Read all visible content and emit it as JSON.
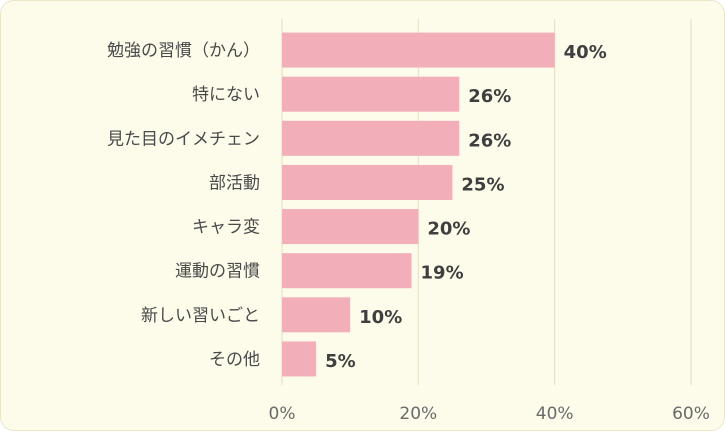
{
  "chart_data": {
    "type": "bar",
    "orientation": "horizontal",
    "categories": [
      "勉強の習慣（かん）",
      "特にない",
      "見た目のイメチェン",
      "部活動",
      "キャラ変",
      "運動の習慣",
      "新しい習いごと",
      "その他"
    ],
    "values": [
      40,
      26,
      26,
      25,
      20,
      19,
      10,
      5
    ],
    "value_labels": [
      "40%",
      "26%",
      "26%",
      "25%",
      "20%",
      "19%",
      "10%",
      "5%"
    ],
    "x_ticks": [
      0,
      20,
      40,
      60
    ],
    "x_tick_labels": [
      "0%",
      "20%",
      "40%",
      "60%"
    ],
    "xlim": [
      0,
      60
    ],
    "grid": true,
    "title": "",
    "xlabel": "",
    "ylabel": ""
  },
  "colors": {
    "bar": "#f2aeb9",
    "background": "#fdfbea",
    "grid": "#e4dec4"
  }
}
